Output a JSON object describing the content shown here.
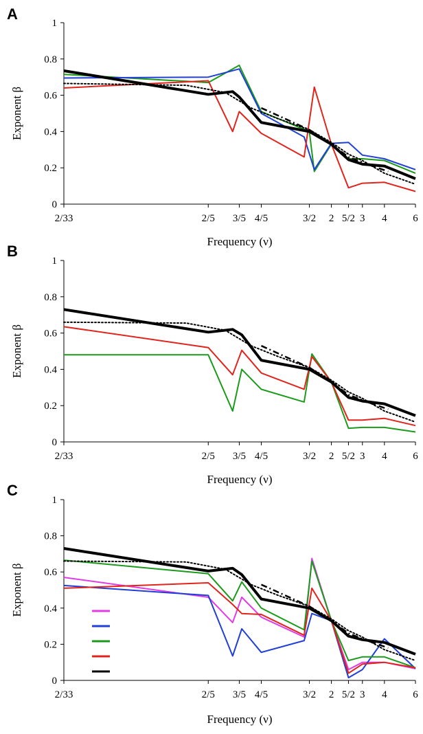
{
  "colors": {
    "black": "#000000",
    "blue": "#1f3fd6",
    "green": "#1a9a1a",
    "red": "#e0241c",
    "magenta": "#e23be6"
  },
  "chart_data": [
    {
      "type": "line",
      "panel": "A",
      "xlabel": "Frequency (ν)",
      "ylabel": "Exponent β",
      "x_scale": "log",
      "ylim": [
        0,
        1
      ],
      "yticks": [
        "0",
        "0.2",
        "0.4",
        "0.6",
        "0.8",
        "1"
      ],
      "xticks": [
        "2/33",
        "2/5",
        "3/5",
        "4/5",
        "3/2",
        "2",
        "5/2",
        "3",
        "4",
        "6"
      ],
      "x": [
        0.0606,
        0.4,
        0.6,
        0.8,
        1.5,
        2,
        2.5,
        3,
        4,
        6
      ],
      "series": [
        {
          "color": "#1a9a1a",
          "style": "solid",
          "x": [
            0.0606,
            0.4,
            0.6,
            0.8,
            1.5,
            1.6,
            2,
            2.5,
            3,
            4,
            6
          ],
          "values": [
            0.715,
            0.67,
            0.765,
            0.51,
            0.4,
            0.18,
            0.33,
            0.25,
            0.25,
            0.24,
            0.17
          ]
        },
        {
          "color": "#1f3fd6",
          "style": "solid",
          "x": [
            0.0606,
            0.4,
            0.6,
            0.8,
            1.4,
            1.6,
            2,
            2.5,
            3,
            4,
            6
          ],
          "values": [
            0.695,
            0.7,
            0.745,
            0.5,
            0.37,
            0.19,
            0.335,
            0.34,
            0.27,
            0.25,
            0.19
          ]
        },
        {
          "color": "#e0241c",
          "style": "solid",
          "x": [
            0.0606,
            0.4,
            0.55,
            0.6,
            0.8,
            1.4,
            1.6,
            2,
            2.5,
            3,
            4,
            6
          ],
          "values": [
            0.64,
            0.68,
            0.4,
            0.51,
            0.39,
            0.26,
            0.645,
            0.33,
            0.09,
            0.115,
            0.12,
            0.07
          ]
        },
        {
          "color": "#000000",
          "style": "solid-thick",
          "x": [
            0.0606,
            0.4,
            0.55,
            0.6,
            0.8,
            1.5,
            2,
            2.5,
            3,
            4,
            6
          ],
          "values": [
            0.735,
            0.605,
            0.62,
            0.59,
            0.45,
            0.4,
            0.33,
            0.245,
            0.22,
            0.21,
            0.14
          ]
        },
        {
          "color": "#000000",
          "style": "dotted",
          "x": [
            0.0606,
            0.3,
            0.5,
            0.7,
            1.0,
            1.5,
            2,
            2.5,
            3,
            4,
            6
          ],
          "values": [
            0.665,
            0.655,
            0.615,
            0.53,
            0.47,
            0.41,
            0.34,
            0.275,
            0.24,
            0.17,
            0.11
          ]
        },
        {
          "color": "#000000",
          "style": "dashdot",
          "x": [
            0.8,
            1.5,
            2,
            2.5,
            3.3
          ],
          "values": [
            0.53,
            0.41,
            0.33,
            0.26,
            0.215
          ]
        },
        {
          "color": "#000000",
          "style": "dashed",
          "x": [
            3.3,
            4.2
          ],
          "values": [
            0.215,
            0.18
          ]
        }
      ]
    },
    {
      "type": "line",
      "panel": "B",
      "xlabel": "Frequency (ν)",
      "ylabel": "Exponent β",
      "x_scale": "log",
      "ylim": [
        0,
        1
      ],
      "yticks": [
        "0",
        "0.2",
        "0.4",
        "0.6",
        "0.8",
        "1"
      ],
      "xticks": [
        "2/33",
        "2/5",
        "3/5",
        "4/5",
        "3/2",
        "2",
        "5/2",
        "3",
        "4",
        "6"
      ],
      "x": [
        0.0606,
        0.4,
        0.6,
        0.8,
        1.5,
        2,
        2.5,
        3,
        4,
        6
      ],
      "series": [
        {
          "color": "#1a9a1a",
          "style": "solid",
          "x": [
            0.0606,
            0.4,
            0.55,
            0.62,
            0.8,
            1.4,
            1.55,
            2,
            2.5,
            3,
            4,
            6
          ],
          "values": [
            0.48,
            0.48,
            0.17,
            0.4,
            0.29,
            0.22,
            0.485,
            0.33,
            0.075,
            0.08,
            0.08,
            0.055
          ]
        },
        {
          "color": "#e0241c",
          "style": "solid",
          "x": [
            0.0606,
            0.4,
            0.55,
            0.62,
            0.8,
            1.4,
            1.55,
            2,
            2.5,
            3,
            4,
            6
          ],
          "values": [
            0.635,
            0.52,
            0.37,
            0.505,
            0.38,
            0.29,
            0.47,
            0.33,
            0.12,
            0.12,
            0.13,
            0.09
          ]
        },
        {
          "color": "#000000",
          "style": "solid-thick",
          "x": [
            0.0606,
            0.4,
            0.55,
            0.62,
            0.8,
            1.5,
            2,
            2.5,
            3,
            4,
            6
          ],
          "values": [
            0.73,
            0.605,
            0.62,
            0.59,
            0.45,
            0.4,
            0.33,
            0.245,
            0.225,
            0.21,
            0.145
          ]
        },
        {
          "color": "#000000",
          "style": "dotted",
          "x": [
            0.0606,
            0.3,
            0.5,
            0.7,
            1.0,
            1.5,
            2,
            2.5,
            3,
            4,
            6
          ],
          "values": [
            0.66,
            0.655,
            0.615,
            0.53,
            0.47,
            0.41,
            0.34,
            0.275,
            0.24,
            0.17,
            0.11
          ]
        },
        {
          "color": "#000000",
          "style": "dashdot",
          "x": [
            0.8,
            1.5,
            2,
            2.5,
            3.3
          ],
          "values": [
            0.53,
            0.41,
            0.33,
            0.26,
            0.215
          ]
        },
        {
          "color": "#000000",
          "style": "dashed",
          "x": [
            3.3,
            4.2
          ],
          "values": [
            0.215,
            0.18
          ]
        }
      ]
    },
    {
      "type": "line",
      "panel": "C",
      "xlabel": "Frequency (ν)",
      "ylabel": "Exponent β",
      "x_scale": "log",
      "ylim": [
        0,
        1
      ],
      "yticks": [
        "0",
        "0.2",
        "0.4",
        "0.6",
        "0.8",
        "1"
      ],
      "xticks": [
        "2/33",
        "2/5",
        "3/5",
        "4/5",
        "3/2",
        "2",
        "5/2",
        "3",
        "4",
        "6"
      ],
      "x": [
        0.0606,
        0.4,
        0.6,
        0.8,
        1.5,
        2,
        2.5,
        3,
        4,
        6
      ],
      "legend": "lower-left",
      "legend_colors": [
        "#e23be6",
        "#1f3fd6",
        "#1a9a1a",
        "#e0241c",
        "#000000"
      ],
      "series": [
        {
          "color": "#e23be6",
          "style": "solid",
          "x": [
            0.0606,
            0.4,
            0.55,
            0.62,
            0.8,
            1.4,
            1.55,
            2,
            2.5,
            3,
            4,
            6
          ],
          "values": [
            0.57,
            0.46,
            0.32,
            0.46,
            0.35,
            0.24,
            0.675,
            0.33,
            0.06,
            0.1,
            0.1,
            0.065
          ]
        },
        {
          "color": "#1f3fd6",
          "style": "solid",
          "x": [
            0.0606,
            0.4,
            0.55,
            0.62,
            0.8,
            1.4,
            1.55,
            2,
            2.5,
            3,
            4,
            6
          ],
          "values": [
            0.525,
            0.47,
            0.135,
            0.285,
            0.155,
            0.22,
            0.37,
            0.33,
            0.015,
            0.06,
            0.23,
            0.065
          ]
        },
        {
          "color": "#1a9a1a",
          "style": "solid",
          "x": [
            0.0606,
            0.4,
            0.55,
            0.62,
            0.8,
            1.4,
            1.55,
            2,
            2.5,
            3,
            4,
            6
          ],
          "values": [
            0.665,
            0.59,
            0.44,
            0.545,
            0.4,
            0.28,
            0.66,
            0.33,
            0.11,
            0.13,
            0.13,
            0.07
          ]
        },
        {
          "color": "#e0241c",
          "style": "solid",
          "x": [
            0.0606,
            0.4,
            0.55,
            0.62,
            0.8,
            1.4,
            1.55,
            2,
            2.5,
            3,
            4,
            6
          ],
          "values": [
            0.51,
            0.54,
            0.42,
            0.37,
            0.365,
            0.25,
            0.51,
            0.33,
            0.04,
            0.09,
            0.1,
            0.07
          ]
        },
        {
          "color": "#000000",
          "style": "solid-thick",
          "x": [
            0.0606,
            0.4,
            0.55,
            0.62,
            0.8,
            1.5,
            2,
            2.5,
            3,
            4,
            6
          ],
          "values": [
            0.73,
            0.605,
            0.62,
            0.585,
            0.45,
            0.4,
            0.33,
            0.245,
            0.225,
            0.21,
            0.145
          ]
        },
        {
          "color": "#000000",
          "style": "dotted",
          "x": [
            0.0606,
            0.3,
            0.5,
            0.7,
            1.0,
            1.5,
            2,
            2.5,
            3,
            4,
            6
          ],
          "values": [
            0.66,
            0.655,
            0.615,
            0.53,
            0.47,
            0.41,
            0.34,
            0.275,
            0.24,
            0.17,
            0.11
          ]
        },
        {
          "color": "#000000",
          "style": "dashdot",
          "x": [
            0.8,
            1.5,
            2,
            2.5,
            3.3
          ],
          "values": [
            0.53,
            0.41,
            0.33,
            0.26,
            0.215
          ]
        },
        {
          "color": "#000000",
          "style": "dashed",
          "x": [
            3.3,
            4.2
          ],
          "values": [
            0.215,
            0.18
          ]
        }
      ]
    }
  ]
}
